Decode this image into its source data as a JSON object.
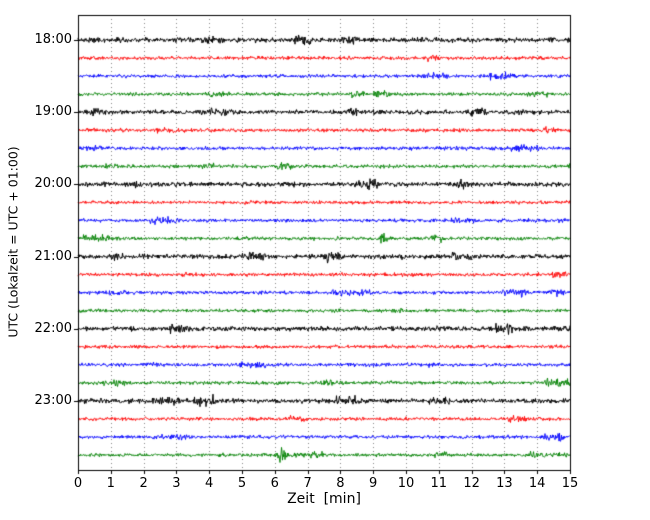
{
  "chart_data": {
    "type": "line",
    "title": "",
    "xlabel": "Zeit  [min]",
    "ylabel": "UTC (Lokalzeit = UTC + 01:00)",
    "xlim": [
      0,
      15
    ],
    "x_ticks": [
      "0",
      "1",
      "2",
      "3",
      "4",
      "5",
      "6",
      "7",
      "8",
      "9",
      "10",
      "11",
      "12",
      "13",
      "14",
      "15"
    ],
    "y_hour_labels": [
      "18:00",
      "19:00",
      "20:00",
      "21:00",
      "22:00",
      "23:00"
    ],
    "grid": "vertical-dotted",
    "trace_interval_min": 15,
    "colors_cycle": [
      "#000000",
      "#ff0000",
      "#0000ff",
      "#008000"
    ],
    "traces": [
      {
        "start": "18:00",
        "color": "#000000",
        "amp": 1.45
      },
      {
        "start": "18:15",
        "color": "#ff0000",
        "amp": 1.0
      },
      {
        "start": "18:30",
        "color": "#0000ff",
        "amp": 1.0
      },
      {
        "start": "18:45",
        "color": "#008000",
        "amp": 1.0
      },
      {
        "start": "19:00",
        "color": "#000000",
        "amp": 1.3
      },
      {
        "start": "19:15",
        "color": "#ff0000",
        "amp": 1.0
      },
      {
        "start": "19:30",
        "color": "#0000ff",
        "amp": 1.0
      },
      {
        "start": "19:45",
        "color": "#008000",
        "amp": 1.0
      },
      {
        "start": "20:00",
        "color": "#000000",
        "amp": 1.35
      },
      {
        "start": "20:15",
        "color": "#ff0000",
        "amp": 1.0
      },
      {
        "start": "20:30",
        "color": "#0000ff",
        "amp": 1.0
      },
      {
        "start": "20:45",
        "color": "#008000",
        "amp": 1.0
      },
      {
        "start": "21:00",
        "color": "#000000",
        "amp": 1.3
      },
      {
        "start": "21:15",
        "color": "#ff0000",
        "amp": 1.0
      },
      {
        "start": "21:30",
        "color": "#0000ff",
        "amp": 1.0
      },
      {
        "start": "21:45",
        "color": "#008000",
        "amp": 1.0
      },
      {
        "start": "22:00",
        "color": "#000000",
        "amp": 1.35
      },
      {
        "start": "22:15",
        "color": "#ff0000",
        "amp": 1.0
      },
      {
        "start": "22:30",
        "color": "#0000ff",
        "amp": 1.0
      },
      {
        "start": "22:45",
        "color": "#008000",
        "amp": 1.0
      },
      {
        "start": "23:00",
        "color": "#000000",
        "amp": 1.3
      },
      {
        "start": "23:15",
        "color": "#ff0000",
        "amp": 1.0
      },
      {
        "start": "23:30",
        "color": "#0000ff",
        "amp": 1.0
      },
      {
        "start": "23:45",
        "color": "#008000",
        "amp": 1.0
      }
    ],
    "events": [
      {
        "trace_index": 11,
        "x_min": 9.3,
        "amp": 3.0
      },
      {
        "trace_index": 23,
        "x_min": 6.2,
        "amp": 1.8
      },
      {
        "trace_index": 8,
        "x_min": 1.8,
        "amp": 1.0
      },
      {
        "trace_index": 7,
        "x_min": 6.4,
        "amp": 1.0
      }
    ]
  }
}
